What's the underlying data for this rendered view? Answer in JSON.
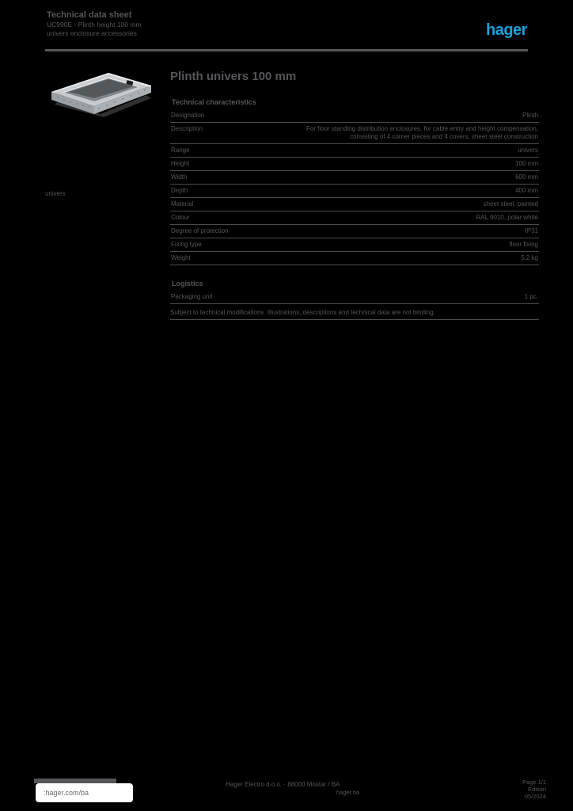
{
  "colors": {
    "background": "#000000",
    "text_gray": "#55565a",
    "rule_gray": "#4a4b4e",
    "logo_blue": "#1ba0dc",
    "footer_pill_bg": "#ffffff",
    "product_light": "#c8cccf",
    "product_mid": "#a9afb3",
    "product_dark": "#8d9296"
  },
  "header": {
    "line1": "Technical data sheet",
    "line2": "UC990E - Plinth height 100 mm",
    "line3": "univers enclosure accessories",
    "logo_text": "hager"
  },
  "product": {
    "image_name": "plinth-photo",
    "side_note": "univers"
  },
  "main": {
    "title": "Plinth univers 100 mm",
    "section1_title": "Technical characteristics",
    "table1": {
      "rows": [
        {
          "label": "Designation",
          "value": "Plinth"
        },
        {
          "label": "Description",
          "value": "For floor standing distribution enclosures, for cable entry and height compensation, consisting of 4 corner pieces and 4 covers, sheet steel construction"
        },
        {
          "label": "Range",
          "value": "univers"
        },
        {
          "label": "Height",
          "value": "100 mm"
        },
        {
          "label": "Width",
          "value": "600 mm"
        },
        {
          "label": "Depth",
          "value": "400 mm"
        },
        {
          "label": "Material",
          "value": "sheet steel, painted"
        },
        {
          "label": "Colour",
          "value": "RAL 9010, polar white"
        },
        {
          "label": "Degree of protection",
          "value": "IP31"
        },
        {
          "label": "Fixing type",
          "value": "floor fixing"
        },
        {
          "label": "Weight",
          "value": "5.2 kg"
        }
      ]
    },
    "section2_title": "Logistics",
    "table2": {
      "rows": [
        {
          "label": "Packaging unit",
          "value": "1 pc."
        }
      ]
    },
    "note": "Subject to technical modifications. Illustrations, descriptions and technical data are not binding."
  },
  "footer": {
    "link": ":hager.com/ba",
    "center_line": "Hager Electro d.o.o. · 88000 Mostar / BA",
    "center_sub": "hager.ba",
    "right_line1": "Page 1/1",
    "right_line2": "Edition",
    "right_line3": "05/2024"
  }
}
